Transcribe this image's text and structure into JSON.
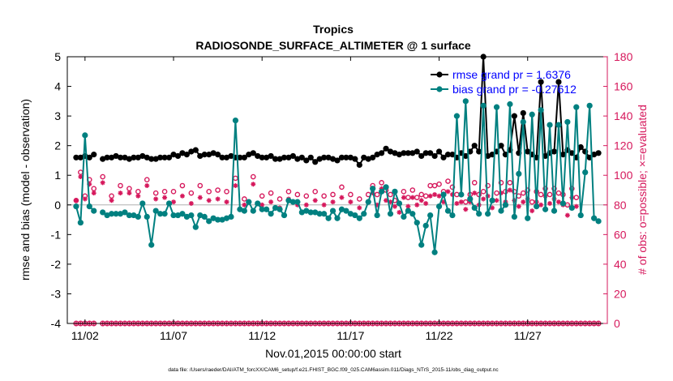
{
  "chart_data": {
    "type": "line",
    "title": "Tropics",
    "subtitle": "RADIOSONDE_SURFACE_ALTIMETER @ 1 surface",
    "xlabel": "Nov.01,2015 00:00:00 start",
    "ylabel": "rmse and bias (model - observation)",
    "y2label": "# of obs: o=possible; ×=evaluated",
    "footnote": "data file: /Users/raeder/DAI/ATM_forcXX/CAM6_setup/f.e21.FHIST_BGC.f09_025.CAM6assim.011/Diags_NTrS_2015-11/obs_diag_output.nc",
    "xlim": [
      0.5,
      31.0
    ],
    "ylim": [
      -4,
      5
    ],
    "y2lim": [
      0,
      180
    ],
    "x_ticks": [
      1.5,
      6.5,
      11.5,
      16.5,
      21.5,
      26.5
    ],
    "x_tick_labels": [
      "11/02",
      "11/07",
      "11/12",
      "11/17",
      "11/22",
      "11/27"
    ],
    "y_ticks": [
      -4,
      -3,
      -2,
      -1,
      0,
      1,
      2,
      3,
      4,
      5
    ],
    "y2_ticks": [
      0,
      20,
      40,
      60,
      80,
      100,
      120,
      140,
      160,
      180
    ],
    "x": [
      1.0,
      1.25,
      1.5,
      1.75,
      2.0,
      2.25,
      2.5,
      2.75,
      3.0,
      3.25,
      3.5,
      3.75,
      4.0,
      4.25,
      4.5,
      4.75,
      5.0,
      5.25,
      5.5,
      5.75,
      6.0,
      6.25,
      6.5,
      6.75,
      7.0,
      7.25,
      7.5,
      7.75,
      8.0,
      8.25,
      8.5,
      8.75,
      9.0,
      9.25,
      9.5,
      9.75,
      10.0,
      10.25,
      10.5,
      10.75,
      11.0,
      11.25,
      11.5,
      11.75,
      12.0,
      12.25,
      12.5,
      12.75,
      13.0,
      13.25,
      13.5,
      13.75,
      14.0,
      14.25,
      14.5,
      14.75,
      15.0,
      15.25,
      15.5,
      15.75,
      16.0,
      16.25,
      16.5,
      16.75,
      17.0,
      17.25,
      17.5,
      17.75,
      18.0,
      18.25,
      18.5,
      18.75,
      19.0,
      19.25,
      19.5,
      19.75,
      20.0,
      20.25,
      20.5,
      20.75,
      21.0,
      21.25,
      21.5,
      21.75,
      22.0,
      22.25,
      22.5,
      22.75,
      23.0,
      23.25,
      23.5,
      23.75,
      24.0,
      24.25,
      24.5,
      24.75,
      25.0,
      25.25,
      25.5,
      25.75,
      26.0,
      26.25,
      26.5,
      26.75,
      27.0,
      27.25,
      27.5,
      27.75,
      28.0,
      28.25,
      28.5,
      28.75,
      29.0,
      29.25,
      29.5,
      29.75,
      30.0,
      30.25,
      30.5
    ],
    "series": [
      {
        "name": "rmse grand pr = 1.6376",
        "color": "#000000",
        "marker": "o",
        "values": [
          1.6,
          1.6,
          1.65,
          1.6,
          1.7,
          null,
          1.55,
          1.6,
          1.6,
          1.65,
          1.6,
          1.6,
          1.55,
          1.6,
          1.6,
          1.65,
          1.6,
          1.55,
          1.55,
          1.6,
          1.6,
          1.6,
          1.7,
          1.65,
          1.75,
          1.7,
          1.8,
          1.85,
          1.65,
          1.7,
          1.7,
          1.75,
          1.7,
          1.6,
          1.6,
          1.65,
          1.6,
          1.6,
          1.6,
          1.7,
          1.75,
          1.65,
          1.6,
          1.6,
          1.65,
          1.55,
          1.55,
          1.6,
          1.6,
          1.65,
          1.55,
          1.6,
          1.5,
          1.6,
          1.45,
          1.55,
          1.6,
          1.6,
          1.55,
          1.5,
          1.6,
          1.6,
          1.6,
          1.55,
          1.35,
          1.6,
          1.55,
          1.6,
          1.7,
          1.75,
          1.9,
          1.8,
          1.75,
          1.7,
          1.75,
          1.75,
          1.75,
          1.8,
          1.65,
          1.75,
          1.75,
          1.65,
          1.8,
          1.6,
          1.7,
          1.7,
          1.6,
          1.75,
          1.65,
          1.8,
          2.0,
          1.8,
          5.0,
          1.65,
          1.7,
          1.8,
          2.0,
          1.7,
          1.85,
          3.0,
          1.75,
          3.1,
          1.8,
          1.7,
          1.6,
          4.15,
          1.65,
          1.75,
          1.8,
          4.15,
          1.7,
          1.85,
          1.75,
          1.6,
          1.95,
          1.8,
          1.6,
          1.7,
          1.75
        ]
      },
      {
        "name": "bias grand pr = -0.27612",
        "color": "#008080",
        "marker": "o",
        "values": [
          -0.05,
          -0.6,
          2.35,
          -0.05,
          -0.2,
          null,
          -0.25,
          -0.35,
          -0.3,
          -0.3,
          -0.3,
          -0.25,
          -0.35,
          -0.35,
          -0.4,
          0.05,
          -0.4,
          -1.35,
          -0.2,
          -0.3,
          -0.3,
          0.05,
          -0.35,
          -0.35,
          -0.3,
          -0.4,
          -0.35,
          -0.75,
          -0.35,
          -0.4,
          -0.55,
          -0.45,
          -0.5,
          -0.5,
          -0.45,
          -0.4,
          2.85,
          -0.15,
          -0.2,
          0.1,
          -0.2,
          0.05,
          -0.15,
          -0.15,
          -0.3,
          -0.1,
          -0.15,
          -0.35,
          0.15,
          0.1,
          0.1,
          -0.25,
          -0.2,
          -0.25,
          -0.25,
          -0.3,
          -0.3,
          -0.45,
          -0.2,
          -0.45,
          -0.15,
          -0.2,
          -0.3,
          -0.35,
          -0.45,
          -0.3,
          0.1,
          0.55,
          -0.35,
          0.45,
          0.6,
          -0.3,
          0.45,
          0.05,
          -0.4,
          -0.2,
          -0.3,
          -0.6,
          -1.35,
          -0.7,
          -0.35,
          -1.6,
          -0.05,
          0.35,
          -0.2,
          -0.35,
          3.0,
          0.35,
          3.5,
          0.2,
          -0.1,
          -0.3,
          3.35,
          -0.3,
          0.15,
          3.3,
          -0.2,
          0.0,
          3.4,
          -0.4,
          1.05,
          2.8,
          -0.45,
          3.05,
          -0.05,
          3.2,
          -0.15,
          2.7,
          -0.2,
          2.7,
          0.05,
          2.8,
          -0.1,
          3.3,
          -0.35,
          1.1,
          3.35,
          -0.45,
          -0.55
        ]
      }
    ],
    "obs_possible": [
      83,
      102,
      86,
      97,
      91,
      null,
      99,
      null,
      86,
      null,
      93,
      null,
      91,
      null,
      89,
      null,
      97,
      null,
      88,
      null,
      89,
      null,
      89,
      null,
      93,
      null,
      88,
      null,
      93,
      null,
      89,
      null,
      90,
      null,
      89,
      null,
      98,
      null,
      84,
      null,
      99,
      null,
      86,
      null,
      88,
      null,
      84,
      null,
      89,
      null,
      87,
      null,
      86,
      null,
      89,
      null,
      86,
      null,
      87,
      null,
      92,
      null,
      87,
      null,
      84,
      null,
      87,
      93,
      87,
      95,
      90,
      87,
      83,
      81,
      89,
      85,
      90,
      85,
      87,
      86,
      93,
      93,
      94,
      89,
      96,
      92,
      87,
      87,
      82,
      87,
      95,
      87,
      89,
      93,
      83,
      88,
      95,
      89,
      95,
      89,
      86,
      88,
      90,
      82,
      89,
      87,
      91,
      87,
      91,
      88,
      87,
      80,
      91,
      85
    ],
    "obs_evaluated": [
      83,
      99,
      84,
      94,
      88,
      null,
      95,
      null,
      83,
      null,
      88,
      null,
      88,
      null,
      86,
      null,
      93,
      null,
      84,
      null,
      85,
      null,
      82,
      null,
      86,
      null,
      81,
      null,
      85,
      null,
      83,
      null,
      84,
      null,
      82,
      null,
      93,
      null,
      80,
      null,
      94,
      null,
      80,
      null,
      82,
      null,
      78,
      null,
      84,
      null,
      80,
      null,
      80,
      null,
      83,
      null,
      80,
      null,
      82,
      null,
      85,
      null,
      82,
      null,
      78,
      null,
      82,
      88,
      80,
      91,
      83,
      82,
      79,
      75,
      85,
      79,
      85,
      80,
      83,
      81,
      86,
      87,
      86,
      82,
      89,
      87,
      81,
      82,
      77,
      82,
      88,
      80,
      84,
      86,
      78,
      83,
      88,
      82,
      90,
      83,
      79,
      82,
      84,
      76,
      82,
      80,
      86,
      81,
      84,
      82,
      80,
      73,
      85,
      79
    ]
  }
}
